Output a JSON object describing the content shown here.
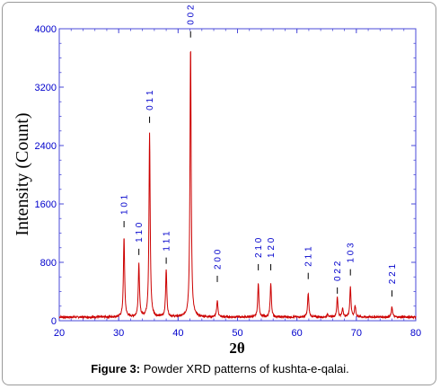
{
  "chart_data": {
    "type": "line",
    "title": "",
    "xlabel": "2θ",
    "ylabel": "Intensity (Count)",
    "xlim": [
      20,
      80
    ],
    "ylim": [
      0,
      4000
    ],
    "x_ticks": [
      "20",
      "30",
      "40",
      "50",
      "60",
      "70",
      "80"
    ],
    "y_ticks": [
      "0",
      "800",
      "1600",
      "2400",
      "3200",
      "4000"
    ],
    "grid": false,
    "colors": {
      "pattern": "#cc0000",
      "axes": "#4a4ad8",
      "ticks": "#0000cc"
    },
    "baseline": 50,
    "peaks": [
      {
        "x": 30.9,
        "y": 1150
      },
      {
        "x": 33.4,
        "y": 770
      },
      {
        "x": 35.2,
        "y": 2560
      },
      {
        "x": 38.0,
        "y": 700
      },
      {
        "x": 42.1,
        "y": 3770
      },
      {
        "x": 46.6,
        "y": 280
      },
      {
        "x": 53.5,
        "y": 510
      },
      {
        "x": 55.6,
        "y": 510
      },
      {
        "x": 61.9,
        "y": 380
      },
      {
        "x": 65.2,
        "y": 90
      },
      {
        "x": 66.8,
        "y": 320
      },
      {
        "x": 67.7,
        "y": 170
      },
      {
        "x": 69.0,
        "y": 460
      },
      {
        "x": 69.8,
        "y": 200
      },
      {
        "x": 76.0,
        "y": 190
      }
    ],
    "annotations": [
      {
        "x": 30.9,
        "text": "1 0 1",
        "tick_y": 1280
      },
      {
        "x": 33.4,
        "text": "1 1 0",
        "tick_y": 900
      },
      {
        "x": 35.2,
        "text": "0 1 1",
        "tick_y": 2710
      },
      {
        "x": 38.0,
        "text": "1 1 1",
        "tick_y": 780
      },
      {
        "x": 42.1,
        "text": "0 0 2",
        "tick_y": 3880
      },
      {
        "x": 46.6,
        "text": "2 0 0",
        "tick_y": 530
      },
      {
        "x": 53.5,
        "text": "2 1 0",
        "tick_y": 690
      },
      {
        "x": 55.6,
        "text": "1 2 0",
        "tick_y": 690
      },
      {
        "x": 61.9,
        "text": "2 1 1",
        "tick_y": 570
      },
      {
        "x": 66.8,
        "text": "0 2 2",
        "tick_y": 370
      },
      {
        "x": 69.0,
        "text": "1 0 3",
        "tick_y": 620
      },
      {
        "x": 76.0,
        "text": "2 2 1",
        "tick_y": 330
      }
    ]
  },
  "caption": {
    "label": "Figure 3:",
    "text": " Powder XRD patterns of kushta-e-qalai."
  }
}
